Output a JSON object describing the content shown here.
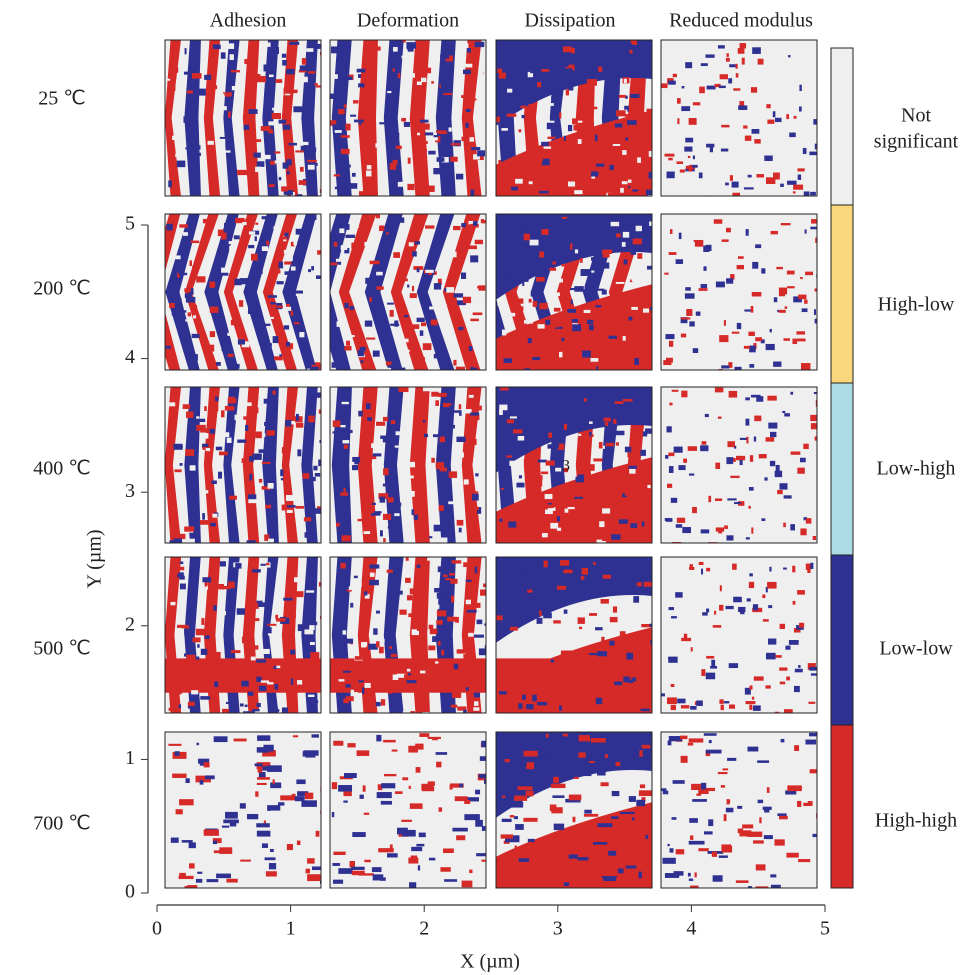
{
  "columns": [
    "Adhesion",
    "Deformation",
    "Dissipation",
    "Reduced modulus"
  ],
  "rows": [
    "25 ℃",
    "200 ℃",
    "400 ℃",
    "500 ℃",
    "700 ℃"
  ],
  "panel_annotation": "3",
  "legend": [
    {
      "label": [
        "Not",
        "significant"
      ],
      "color": "#efefef"
    },
    {
      "label": [
        "High-low"
      ],
      "color": "#f9d77c"
    },
    {
      "label": [
        "Low-high"
      ],
      "color": "#acdbe5"
    },
    {
      "label": [
        "Low-low"
      ],
      "color": "#2e3192"
    },
    {
      "label": [
        "High-high"
      ],
      "color": "#d62a29"
    }
  ],
  "x_axis": {
    "label": "X (µm)",
    "lim": [
      0,
      5
    ],
    "ticks": [
      0,
      1,
      2,
      3,
      4,
      5
    ]
  },
  "y_axis": {
    "label": "Y (µm)",
    "lim": [
      0,
      5
    ],
    "ticks": [
      0,
      1,
      2,
      3,
      4,
      5
    ]
  }
}
